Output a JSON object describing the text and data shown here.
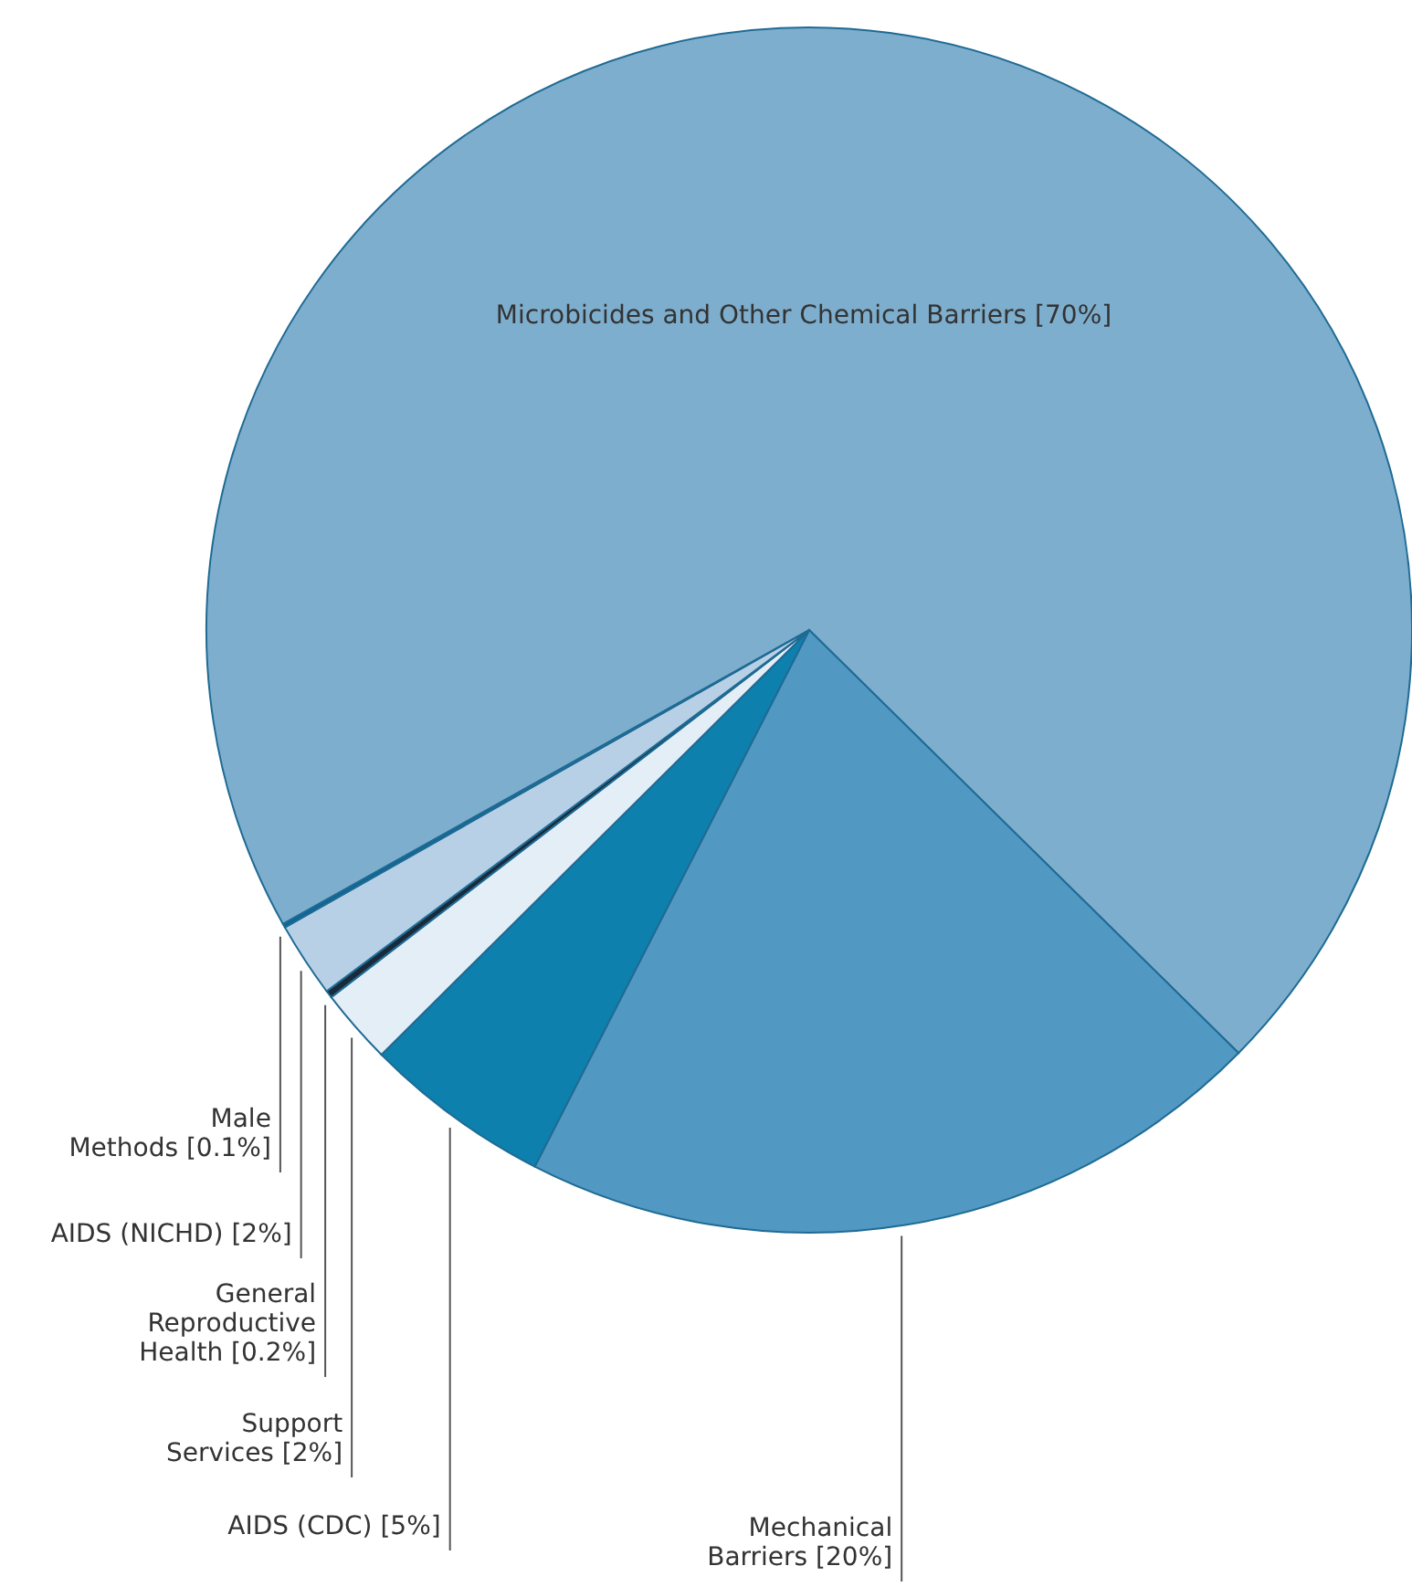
{
  "chart_data": {
    "type": "pie",
    "categories": [
      "Microbicides and Other Chemical Barriers",
      "Mechanical Barriers",
      "AIDS (CDC)",
      "Support Services",
      "General Reproductive Health",
      "AIDS (NICHD)",
      "Male Methods"
    ],
    "values": [
      70,
      20,
      5,
      2,
      0.2,
      2,
      0.1
    ],
    "value_labels": [
      "[70%]",
      "[20%]",
      "[5%]",
      "[2%]",
      "[0.2%]",
      "[2%]",
      "[0.1%]"
    ],
    "colors": [
      "#7eaece",
      "#5198c2",
      "#0d80ad",
      "#e4eef6",
      "#1a2a3a",
      "#b8d0e6",
      "#0d6694"
    ]
  }
}
